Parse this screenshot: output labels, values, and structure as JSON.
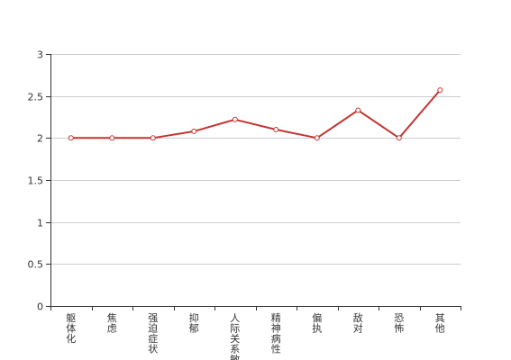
{
  "chart_data": {
    "type": "line",
    "title": "",
    "xlabel": "",
    "ylabel": "",
    "categories": [
      "躯体化",
      "焦虑",
      "强迫症状",
      "抑郁",
      "人际关系敏感",
      "精神病性",
      "偏执",
      "敌对",
      "恐怖",
      "其他"
    ],
    "series": [
      {
        "values": [
          2.0,
          2.0,
          2.0,
          2.08,
          2.22,
          2.1,
          2.0,
          2.33,
          2.0,
          2.57
        ],
        "color": "#c23531"
      }
    ],
    "ylim": [
      0,
      3
    ],
    "yticks": [
      0,
      0.5,
      1,
      1.5,
      2,
      2.5,
      3
    ],
    "ytick_labels": [
      "0",
      "0.5",
      "1",
      "1.5",
      "2",
      "2.5",
      "3"
    ],
    "grid": true,
    "legend": "none"
  }
}
